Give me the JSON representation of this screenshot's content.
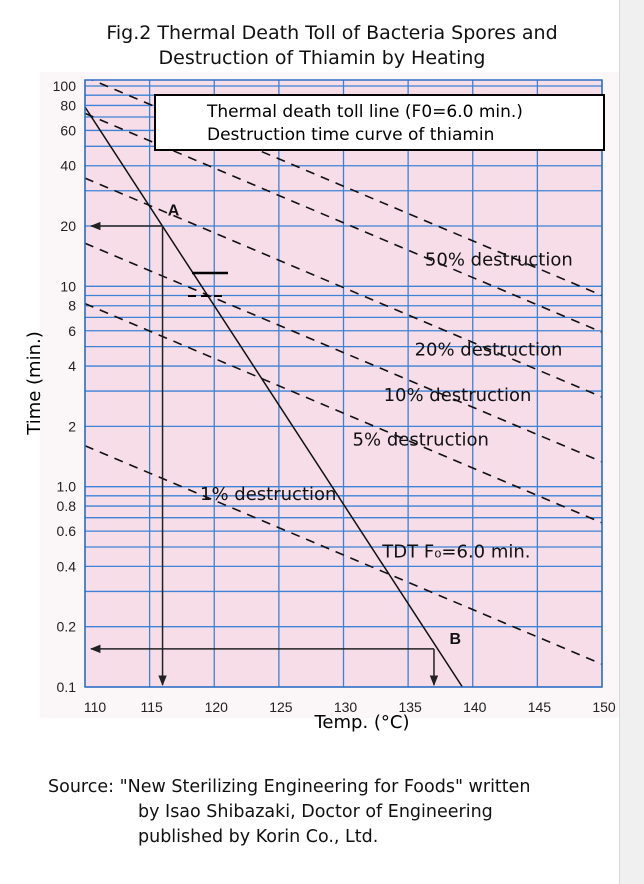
{
  "title_lines": [
    "Fig.2 Thermal Death Toll of Bacteria Spores and",
    "Destruction of Thiamin by Heating"
  ],
  "chart_data": {
    "type": "line",
    "title": "Fig.2 Thermal Death Toll of Bacteria Spores and Destruction of Thiamin by Heating",
    "xlabel": "Temp. (°C)",
    "ylabel": "Time (min.)",
    "xlim": [
      110,
      150
    ],
    "ylim": [
      0.1,
      100
    ],
    "yscale": "log",
    "grid": true,
    "x_ticks": [
      "110",
      "115",
      "120",
      "125",
      "130",
      "135",
      "140",
      "145",
      "150"
    ],
    "y_ticks": [
      {
        "value": 100,
        "label": "100"
      },
      {
        "value": 80,
        "label": "80"
      },
      {
        "value": 60,
        "label": "60"
      },
      {
        "value": 40,
        "label": "40"
      },
      {
        "value": 20,
        "label": "20"
      },
      {
        "value": 10,
        "label": "10"
      },
      {
        "value": 8,
        "label": "8"
      },
      {
        "value": 6,
        "label": "6"
      },
      {
        "value": 4,
        "label": "4"
      },
      {
        "value": 2,
        "label": "2"
      },
      {
        "value": 1,
        "label": "1.0"
      },
      {
        "value": 0.8,
        "label": "0.8"
      },
      {
        "value": 0.6,
        "label": "0.6"
      },
      {
        "value": 0.4,
        "label": "0.4"
      },
      {
        "value": 0.2,
        "label": "0.2"
      },
      {
        "value": 0.1,
        "label": "0.1"
      }
    ],
    "legend": {
      "placement": "top",
      "entries": [
        "Thermal death toll line (F0=6.0 min.)",
        "Destruction time curve of thiamin"
      ]
    },
    "series": [
      {
        "style": "solid",
        "points": [
          [
            110,
            78.5
          ],
          [
            139.2,
            0.1
          ]
        ]
      },
      {
        "style": "dashed",
        "points": [
          [
            110,
            111
          ],
          [
            150,
            9.0
          ]
        ]
      },
      {
        "style": "dashed",
        "points": [
          [
            110,
            73
          ],
          [
            150,
            5.9
          ]
        ]
      },
      {
        "style": "dashed",
        "points": [
          [
            110,
            34.7
          ],
          [
            150,
            2.8
          ]
        ]
      },
      {
        "style": "dashed",
        "points": [
          [
            110,
            16.4
          ],
          [
            150,
            1.33
          ]
        ]
      },
      {
        "style": "dashed",
        "points": [
          [
            110,
            8.2
          ],
          [
            150,
            0.66
          ]
        ]
      },
      {
        "style": "dashed",
        "points": [
          [
            110,
            1.6
          ],
          [
            150,
            0.13
          ]
        ]
      }
    ],
    "annotations": [
      {
        "text": "50% destruction",
        "x": 136.3,
        "y": 13.8
      },
      {
        "text": "20% destruction",
        "x": 135.5,
        "y": 4.9
      },
      {
        "text": "10% destruction",
        "x": 133.1,
        "y": 2.9
      },
      {
        "text": "5% destruction",
        "x": 130.7,
        "y": 1.74
      },
      {
        "text": "1% destruction",
        "x": 118.9,
        "y": 0.93
      },
      {
        "text": "TDT F₀=6.0 min.",
        "x": 133.0,
        "y": 0.48
      },
      {
        "text": "A",
        "x": 116.4,
        "y": 24.5
      },
      {
        "text": "B",
        "x": 138.2,
        "y": 0.178
      }
    ],
    "reference_points": [
      {
        "label": "A",
        "temp": 116,
        "time": 20
      },
      {
        "label": "B",
        "temp": 137,
        "time": 0.155
      }
    ]
  },
  "source_lines": [
    "Source: \"New Sterilizing Engineering for Foods\" written",
    "by Isao Shibazaki, Doctor of Engineering",
    "published by Korin Co., Ltd."
  ]
}
